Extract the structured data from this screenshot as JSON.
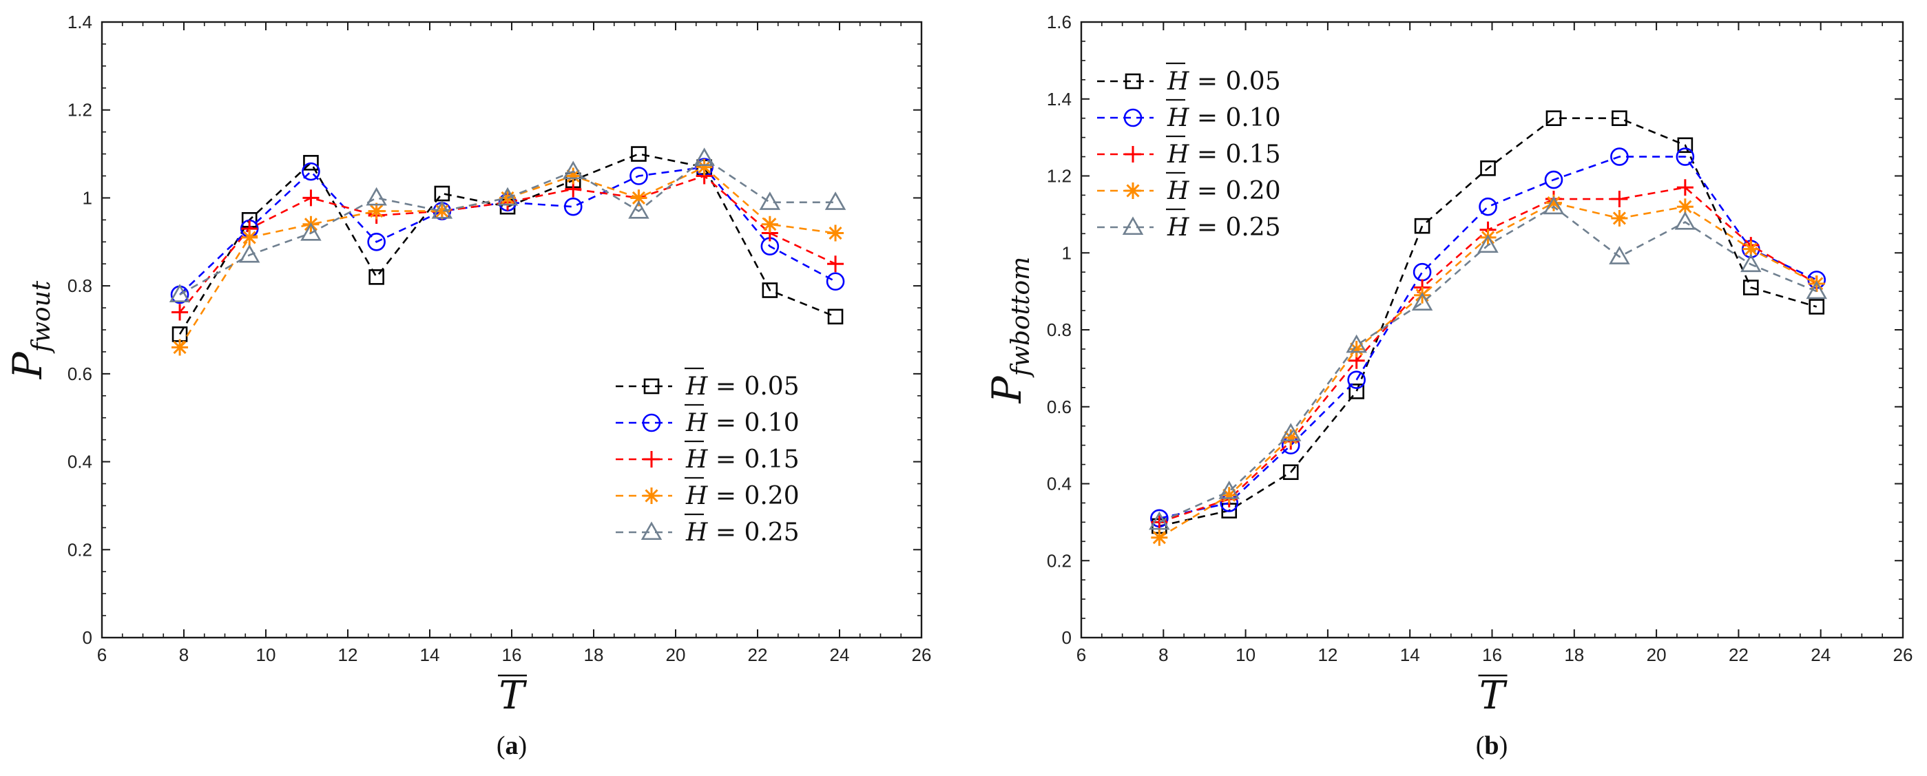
{
  "chart_data": [
    {
      "type": "line",
      "panel": "a",
      "caption_letter": "a",
      "xlabel": {
        "symbol": "T"
      },
      "ylabel": {
        "symbol": "P",
        "subscript": "fwout"
      },
      "xlim": [
        6,
        26
      ],
      "ylim": [
        0,
        1.4
      ],
      "xticks": [
        6,
        8,
        10,
        12,
        14,
        16,
        18,
        20,
        22,
        24,
        26
      ],
      "yticks": [
        0,
        0.2,
        0.4,
        0.6,
        0.8,
        1,
        1.2,
        1.4
      ],
      "legend_position": "lower-right",
      "grid": false,
      "x": [
        7.9,
        9.6,
        11.1,
        12.7,
        14.3,
        15.9,
        17.5,
        19.1,
        20.7,
        22.3,
        23.9
      ],
      "series": [
        {
          "name": "0.05",
          "color": "#000000",
          "marker": "square",
          "values": [
            0.69,
            0.95,
            1.08,
            0.82,
            1.01,
            0.98,
            1.04,
            1.1,
            1.07,
            0.79,
            0.73
          ]
        },
        {
          "name": "0.10",
          "color": "#0000ff",
          "marker": "circle",
          "values": [
            0.78,
            0.93,
            1.06,
            0.9,
            0.97,
            0.99,
            0.98,
            1.05,
            1.07,
            0.89,
            0.81
          ]
        },
        {
          "name": "0.15",
          "color": "#ff0000",
          "marker": "plus",
          "values": [
            0.74,
            0.93,
            1.0,
            0.96,
            0.97,
            0.99,
            1.02,
            1.0,
            1.05,
            0.92,
            0.85
          ]
        },
        {
          "name": "0.20",
          "color": "#ff8c00",
          "marker": "asterisk",
          "values": [
            0.66,
            0.91,
            0.94,
            0.97,
            0.97,
            1.0,
            1.05,
            1.0,
            1.07,
            0.94,
            0.92
          ]
        },
        {
          "name": "0.25",
          "color": "#708090",
          "marker": "triangle",
          "values": [
            0.78,
            0.87,
            0.92,
            1.0,
            0.97,
            1.0,
            1.06,
            0.97,
            1.09,
            0.99,
            0.99
          ]
        }
      ]
    },
    {
      "type": "line",
      "panel": "b",
      "caption_letter": "b",
      "xlabel": {
        "symbol": "T"
      },
      "ylabel": {
        "symbol": "P",
        "subscript": "fwbottom"
      },
      "xlim": [
        6,
        26
      ],
      "ylim": [
        0,
        1.6
      ],
      "xticks": [
        6,
        8,
        10,
        12,
        14,
        16,
        18,
        20,
        22,
        24,
        26
      ],
      "yticks": [
        0,
        0.2,
        0.4,
        0.6,
        0.8,
        1,
        1.2,
        1.4,
        1.6
      ],
      "legend_position": "upper-left",
      "grid": false,
      "x": [
        7.9,
        9.6,
        11.1,
        12.7,
        14.3,
        15.9,
        17.5,
        19.1,
        20.7,
        22.3,
        23.9
      ],
      "series": [
        {
          "name": "0.05",
          "color": "#000000",
          "marker": "square",
          "values": [
            0.29,
            0.33,
            0.43,
            0.64,
            1.07,
            1.22,
            1.35,
            1.35,
            1.28,
            0.91,
            0.86
          ]
        },
        {
          "name": "0.10",
          "color": "#0000ff",
          "marker": "circle",
          "values": [
            0.31,
            0.35,
            0.5,
            0.67,
            0.95,
            1.12,
            1.19,
            1.25,
            1.25,
            1.01,
            0.93
          ]
        },
        {
          "name": "0.15",
          "color": "#ff0000",
          "marker": "plus",
          "values": [
            0.3,
            0.36,
            0.51,
            0.72,
            0.91,
            1.06,
            1.14,
            1.14,
            1.17,
            1.02,
            0.92
          ]
        },
        {
          "name": "0.20",
          "color": "#ff8c00",
          "marker": "asterisk",
          "values": [
            0.26,
            0.37,
            0.52,
            0.75,
            0.89,
            1.04,
            1.13,
            1.09,
            1.12,
            1.01,
            0.92
          ]
        },
        {
          "name": "0.25",
          "color": "#708090",
          "marker": "triangle",
          "values": [
            0.3,
            0.38,
            0.53,
            0.76,
            0.87,
            1.02,
            1.12,
            0.99,
            1.08,
            0.97,
            0.9
          ]
        }
      ]
    }
  ]
}
